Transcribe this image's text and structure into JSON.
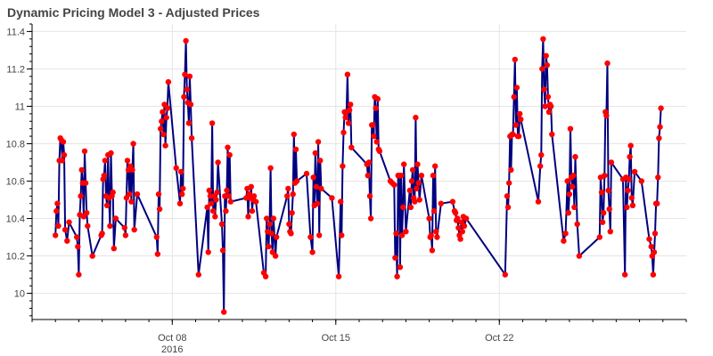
{
  "chart_data": {
    "type": "line",
    "title": "Dynamic Pricing Model 3 - Adjusted Prices",
    "xlabel": "",
    "ylabel": "",
    "xlim": [
      "2016-10-02",
      "2016-10-30"
    ],
    "ylim": [
      9.86,
      11.44
    ],
    "grid": true,
    "line_color": "#00007f",
    "marker_color": "#ff0000",
    "x_ticks": [
      {
        "date": "2016-10-08",
        "label": "Oct 08",
        "sublabel": "2016"
      },
      {
        "date": "2016-10-15",
        "label": "Oct 15",
        "sublabel": ""
      },
      {
        "date": "2016-10-22",
        "label": "Oct 22",
        "sublabel": ""
      }
    ],
    "y_ticks": [
      {
        "value": 10.0,
        "label": "10"
      },
      {
        "value": 10.2,
        "label": "10.2"
      },
      {
        "value": 10.4,
        "label": "10.4"
      },
      {
        "value": 10.6,
        "label": "10.6"
      },
      {
        "value": 10.8,
        "label": "10.8"
      },
      {
        "value": 11.0,
        "label": "11"
      },
      {
        "value": 11.2,
        "label": "11.2"
      },
      {
        "value": 11.4,
        "label": "11.4"
      }
    ],
    "series": [
      {
        "x": [
          "2016-10-03 00:00",
          "2016-10-03 01:00",
          "2016-10-03 02:00",
          "2016-10-03 03:00",
          "2016-10-03 04:00",
          "2016-10-03 05:00",
          "2016-10-03 06:00",
          "2016-10-03 07:00",
          "2016-10-03 08:00",
          "2016-10-03 09:00",
          "2016-10-03 10:00",
          "2016-10-03 12:00",
          "2016-10-03 14:00",
          "2016-10-03 22:00",
          "2016-10-03 23:00",
          "2016-10-04 00:00",
          "2016-10-04 01:00",
          "2016-10-04 02:00",
          "2016-10-04 03:00",
          "2016-10-04 04:00",
          "2016-10-04 05:00",
          "2016-10-04 06:00",
          "2016-10-04 07:00",
          "2016-10-04 08:00",
          "2016-10-04 09:00",
          "2016-10-04 14:00",
          "2016-10-04 23:00",
          "2016-10-05 00:00",
          "2016-10-05 01:00",
          "2016-10-05 02:00",
          "2016-10-05 03:00",
          "2016-10-05 04:00",
          "2016-10-05 05:00",
          "2016-10-05 06:00",
          "2016-10-05 07:00",
          "2016-10-05 08:00",
          "2016-10-05 09:00",
          "2016-10-05 10:00",
          "2016-10-05 11:00",
          "2016-10-05 12:00",
          "2016-10-05 14:00",
          "2016-10-05 23:00",
          "2016-10-06 00:00",
          "2016-10-06 01:00",
          "2016-10-06 02:00",
          "2016-10-06 03:00",
          "2016-10-06 04:00",
          "2016-10-06 05:00",
          "2016-10-06 06:00",
          "2016-10-06 07:00",
          "2016-10-06 08:00",
          "2016-10-06 09:00",
          "2016-10-06 12:00",
          "2016-10-07 08:00",
          "2016-10-07 09:00",
          "2016-10-07 10:00",
          "2016-10-07 11:00",
          "2016-10-07 12:00",
          "2016-10-07 13:00",
          "2016-10-07 14:00",
          "2016-10-07 15:00",
          "2016-10-07 16:00",
          "2016-10-07 17:00",
          "2016-10-07 18:00",
          "2016-10-07 19:00",
          "2016-10-07 20:00",
          "2016-10-08 04:00",
          "2016-10-08 08:00",
          "2016-10-08 09:00",
          "2016-10-08 10:00",
          "2016-10-08 11:00",
          "2016-10-08 12:00",
          "2016-10-08 13:00",
          "2016-10-08 14:00",
          "2016-10-08 15:00",
          "2016-10-08 16:00",
          "2016-10-08 17:00",
          "2016-10-08 18:00",
          "2016-10-08 19:00",
          "2016-10-08 20:00",
          "2016-10-09 03:00",
          "2016-10-09 12:00",
          "2016-10-09 13:00",
          "2016-10-09 14:00",
          "2016-10-09 15:00",
          "2016-10-09 16:00",
          "2016-10-09 17:00",
          "2016-10-09 18:00",
          "2016-10-09 19:00",
          "2016-10-09 20:00",
          "2016-10-09 21:00",
          "2016-10-09 22:00",
          "2016-10-09 23:00",
          "2016-10-10 03:00",
          "2016-10-10 04:00",
          "2016-10-10 05:00",
          "2016-10-10 06:00",
          "2016-10-10 07:00",
          "2016-10-10 08:00",
          "2016-10-10 09:00",
          "2016-10-10 10:00",
          "2016-10-10 11:00",
          "2016-10-10 12:00",
          "2016-10-11 04:00",
          "2016-10-11 05:00",
          "2016-10-11 06:00",
          "2016-10-11 07:00",
          "2016-10-11 08:00",
          "2016-10-11 09:00",
          "2016-10-11 10:00",
          "2016-10-11 11:00",
          "2016-10-11 12:00",
          "2016-10-11 14:00",
          "2016-10-11 22:00",
          "2016-10-12 00:00",
          "2016-10-12 01:00",
          "2016-10-12 02:00",
          "2016-10-12 03:00",
          "2016-10-12 04:00",
          "2016-10-12 05:00",
          "2016-10-12 06:00",
          "2016-10-12 07:00",
          "2016-10-12 08:00",
          "2016-10-12 10:00",
          "2016-10-12 11:00",
          "2016-10-12 22:00",
          "2016-10-12 23:00",
          "2016-10-13 00:00",
          "2016-10-13 01:00",
          "2016-10-13 02:00",
          "2016-10-13 03:00",
          "2016-10-13 04:00",
          "2016-10-13 05:00",
          "2016-10-13 06:00",
          "2016-10-13 07:00",
          "2016-10-13 08:00",
          "2016-10-13 18:00",
          "2016-10-13 22:00",
          "2016-10-14 00:00",
          "2016-10-14 01:00",
          "2016-10-14 02:00",
          "2016-10-14 03:00",
          "2016-10-14 04:00",
          "2016-10-14 05:00",
          "2016-10-14 06:00",
          "2016-10-14 07:00",
          "2016-10-14 08:00",
          "2016-10-14 09:00",
          "2016-10-14 20:00",
          "2016-10-15 03:00",
          "2016-10-15 05:00",
          "2016-10-15 06:00",
          "2016-10-15 07:00",
          "2016-10-15 08:00",
          "2016-10-15 09:00",
          "2016-10-15 10:00",
          "2016-10-15 11:00",
          "2016-10-15 12:00",
          "2016-10-15 13:00",
          "2016-10-15 14:00",
          "2016-10-15 15:00",
          "2016-10-15 16:00",
          "2016-10-16 08:00",
          "2016-10-16 09:00",
          "2016-10-16 10:00",
          "2016-10-16 11:00",
          "2016-10-16 12:00",
          "2016-10-16 13:00",
          "2016-10-16 14:00",
          "2016-10-16 15:00",
          "2016-10-16 16:00",
          "2016-10-16 17:00",
          "2016-10-16 18:00",
          "2016-10-16 19:00",
          "2016-10-16 20:00",
          "2016-10-16 21:00",
          "2016-10-17 08:00",
          "2016-10-17 10:00",
          "2016-10-17 12:00",
          "2016-10-17 13:00",
          "2016-10-17 14:00",
          "2016-10-17 15:00",
          "2016-10-17 16:00",
          "2016-10-17 17:00",
          "2016-10-17 18:00",
          "2016-10-17 19:00",
          "2016-10-17 20:00",
          "2016-10-17 21:00",
          "2016-10-17 22:00",
          "2016-10-18 00:00",
          "2016-10-18 04:00",
          "2016-10-18 05:00",
          "2016-10-18 06:00",
          "2016-10-18 07:00",
          "2016-10-18 08:00",
          "2016-10-18 09:00",
          "2016-10-18 10:00",
          "2016-10-18 11:00",
          "2016-10-18 12:00",
          "2016-10-18 13:00",
          "2016-10-18 14:00",
          "2016-10-18 16:00",
          "2016-10-19 00:00",
          "2016-10-19 01:00",
          "2016-10-19 02:00",
          "2016-10-19 03:00",
          "2016-10-19 04:00",
          "2016-10-19 05:00",
          "2016-10-19 06:00",
          "2016-10-19 07:00",
          "2016-10-19 08:00",
          "2016-10-19 12:00",
          "2016-10-20 00:00",
          "2016-10-20 02:00",
          "2016-10-20 03:00",
          "2016-10-20 04:00",
          "2016-10-20 05:00",
          "2016-10-20 06:00",
          "2016-10-20 07:00",
          "2016-10-20 08:00",
          "2016-10-20 09:00",
          "2016-10-20 10:00",
          "2016-10-20 11:00",
          "2016-10-20 12:00",
          "2016-10-20 14:00",
          "2016-10-22 06:00",
          "2016-10-22 08:00",
          "2016-10-22 09:00",
          "2016-10-22 10:00",
          "2016-10-22 11:00",
          "2016-10-22 12:00",
          "2016-10-22 13:00",
          "2016-10-22 14:00",
          "2016-10-22 15:00",
          "2016-10-22 16:00",
          "2016-10-22 17:00",
          "2016-10-22 18:00",
          "2016-10-22 19:00",
          "2016-10-22 20:00",
          "2016-10-22 21:00",
          "2016-10-22 22:00",
          "2016-10-23 16:00",
          "2016-10-23 18:00",
          "2016-10-23 19:00",
          "2016-10-23 20:00",
          "2016-10-23 21:00",
          "2016-10-23 22:00",
          "2016-10-23 23:00",
          "2016-10-24 00:00",
          "2016-10-24 01:00",
          "2016-10-24 02:00",
          "2016-10-24 03:00",
          "2016-10-24 04:00",
          "2016-10-24 05:00",
          "2016-10-24 06:00",
          "2016-10-24 18:00",
          "2016-10-24 20:00",
          "2016-10-24 22:00",
          "2016-10-24 23:00",
          "2016-10-25 00:00",
          "2016-10-25 01:00",
          "2016-10-25 02:00",
          "2016-10-25 03:00",
          "2016-10-25 04:00",
          "2016-10-25 05:00",
          "2016-10-25 06:00",
          "2016-10-25 08:00",
          "2016-10-25 10:00",
          "2016-10-26 07:00",
          "2016-10-26 08:00",
          "2016-10-26 09:00",
          "2016-10-26 10:00",
          "2016-10-26 11:00",
          "2016-10-26 12:00",
          "2016-10-26 13:00",
          "2016-10-26 14:00",
          "2016-10-26 15:00",
          "2016-10-26 16:00",
          "2016-10-26 17:00",
          "2016-10-26 18:00",
          "2016-10-26 19:00",
          "2016-10-27 07:00",
          "2016-10-27 09:00",
          "2016-10-27 10:00",
          "2016-10-27 11:00",
          "2016-10-27 12:00",
          "2016-10-27 13:00",
          "2016-10-27 14:00",
          "2016-10-27 15:00",
          "2016-10-27 16:00",
          "2016-10-27 17:00",
          "2016-10-27 19:00",
          "2016-10-28 02:00",
          "2016-10-28 10:00",
          "2016-10-28 12:00",
          "2016-10-28 13:00",
          "2016-10-28 14:00",
          "2016-10-28 15:00",
          "2016-10-28 16:00",
          "2016-10-28 17:00",
          "2016-10-28 18:00",
          "2016-10-28 19:00",
          "2016-10-28 20:00",
          "2016-10-28 21:00",
          "2016-10-28 22:00"
        ],
        "y": [
          10.31,
          10.44,
          10.48,
          10.36,
          10.71,
          10.83,
          10.82,
          10.71,
          10.81,
          10.74,
          10.34,
          10.28,
          10.38,
          10.3,
          10.25,
          10.1,
          10.42,
          10.52,
          10.66,
          10.59,
          10.41,
          10.76,
          10.59,
          10.43,
          10.36,
          10.2,
          10.31,
          10.32,
          10.61,
          10.63,
          10.71,
          10.52,
          10.47,
          10.74,
          10.51,
          10.36,
          10.75,
          10.52,
          10.54,
          10.24,
          10.4,
          10.35,
          10.31,
          10.51,
          10.71,
          10.66,
          10.53,
          10.68,
          10.49,
          10.66,
          10.8,
          10.34,
          10.53,
          10.3,
          10.21,
          10.53,
          10.45,
          10.88,
          10.92,
          10.97,
          10.85,
          11.01,
          10.79,
          10.94,
          10.99,
          11.13,
          10.67,
          10.48,
          10.65,
          10.53,
          10.56,
          11.05,
          11.17,
          11.35,
          11.09,
          11.02,
          10.91,
          11.16,
          11.01,
          10.83,
          10.1,
          10.46,
          10.22,
          10.55,
          10.52,
          10.48,
          10.91,
          10.44,
          10.52,
          10.41,
          10.5,
          10.54,
          10.7,
          10.37,
          10.23,
          9.9,
          10.52,
          10.44,
          10.55,
          10.78,
          10.52,
          10.74,
          10.49,
          10.51,
          10.56,
          10.41,
          10.53,
          10.51,
          10.57,
          10.44,
          10.5,
          10.52,
          10.49,
          10.11,
          10.09,
          10.4,
          10.33,
          10.25,
          10.37,
          10.67,
          10.32,
          10.22,
          10.4,
          10.2,
          10.3,
          10.52,
          10.56,
          10.37,
          10.33,
          10.32,
          10.43,
          10.53,
          10.85,
          10.59,
          10.77,
          10.6,
          10.64,
          10.3,
          10.22,
          10.62,
          10.47,
          10.75,
          10.57,
          10.48,
          10.81,
          10.31,
          10.71,
          10.56,
          10.51,
          10.09,
          10.49,
          10.31,
          10.68,
          10.86,
          10.97,
          10.94,
          10.97,
          11.17,
          10.91,
          10.98,
          11.01,
          10.78,
          10.69,
          10.63,
          10.7,
          10.52,
          10.4,
          10.9,
          10.9,
          10.84,
          11.05,
          10.99,
          10.81,
          11.04,
          10.77,
          10.76,
          10.6,
          10.59,
          10.58,
          10.19,
          10.32,
          10.09,
          10.63,
          10.63,
          10.14,
          10.63,
          10.31,
          10.46,
          10.69,
          10.33,
          10.55,
          10.46,
          10.6,
          10.66,
          10.51,
          10.49,
          10.94,
          10.56,
          10.69,
          10.59,
          10.5,
          10.63,
          10.4,
          10.3,
          10.31,
          10.23,
          10.63,
          10.44,
          10.68,
          10.33,
          10.3,
          10.48,
          10.49,
          10.44,
          10.43,
          10.39,
          10.4,
          10.35,
          10.31,
          10.29,
          10.38,
          10.33,
          10.41,
          10.36,
          10.4,
          10.1,
          10.52,
          10.46,
          10.59,
          10.84,
          10.66,
          10.85,
          10.85,
          11.05,
          11.25,
          10.9,
          11.1,
          10.84,
          10.84,
          10.96,
          10.93,
          10.49,
          10.68,
          10.74,
          11.2,
          11.36,
          11.09,
          11.0,
          11.27,
          11.22,
          11.05,
          10.97,
          11.01,
          11.0,
          10.85,
          10.28,
          10.32,
          10.6,
          10.43,
          10.53,
          10.88,
          10.62,
          10.57,
          10.63,
          10.46,
          10.73,
          10.37,
          10.2,
          10.3,
          10.62,
          10.54,
          10.38,
          10.43,
          10.63,
          10.97,
          10.95,
          11.23,
          10.55,
          10.45,
          10.33,
          10.7,
          10.61,
          10.1,
          10.62,
          10.46,
          10.55,
          10.61,
          10.73,
          10.79,
          10.51,
          10.47,
          10.65,
          10.6,
          10.29,
          10.25,
          10.2,
          10.1,
          10.22,
          10.32,
          10.48,
          10.48,
          10.62,
          10.83,
          10.89,
          10.99
        ]
      }
    ]
  }
}
